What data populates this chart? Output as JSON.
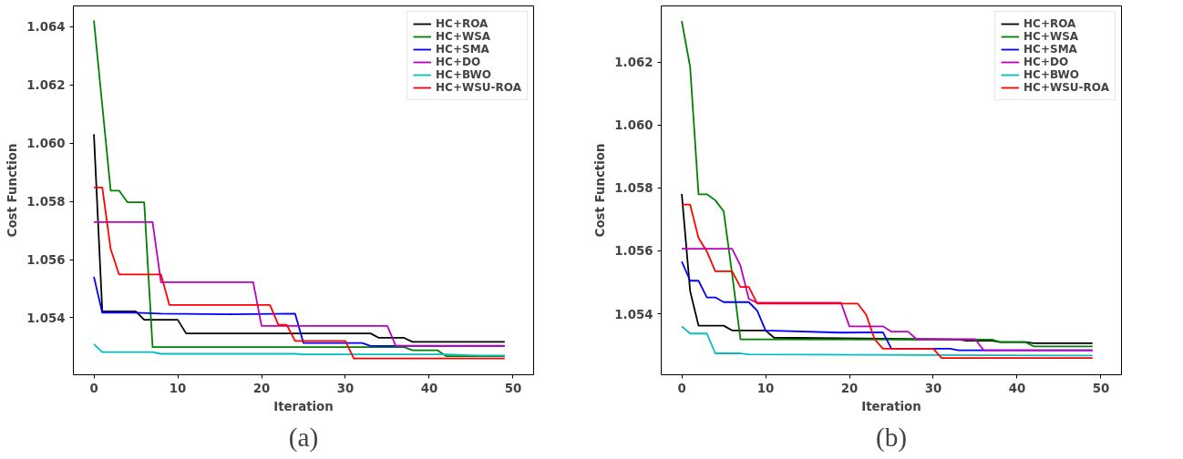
{
  "chart_data": [
    {
      "type": "line",
      "xlabel": "Iteration",
      "ylabel": "Cost Function",
      "annotations": [
        "(a)"
      ],
      "xlim": [
        -2.45,
        52.45
      ],
      "ylim": [
        1.05204,
        1.06472
      ],
      "xticks": [
        0,
        10,
        20,
        30,
        40,
        50
      ],
      "yticks": [
        {
          "value": 1.054,
          "label": "1.054"
        },
        {
          "value": 1.056,
          "label": "1.056"
        },
        {
          "value": 1.058,
          "label": "1.058"
        },
        {
          "value": 1.06,
          "label": "1.060"
        },
        {
          "value": 1.062,
          "label": "1.062"
        },
        {
          "value": 1.064,
          "label": "1.064"
        }
      ],
      "legend": "top right",
      "grid": false,
      "line_style": "solid",
      "marker": "none",
      "series": [
        {
          "name": "HC+ROA",
          "color": "#000000",
          "x": [
            0,
            1,
            5,
            6,
            10,
            11,
            33,
            34,
            37,
            38,
            49
          ],
          "values": [
            1.06031,
            1.05422,
            1.05422,
            1.05393,
            1.05393,
            1.05346,
            1.05346,
            1.05331,
            1.05331,
            1.05317,
            1.05317
          ]
        },
        {
          "name": "HC+WSA",
          "color": "#008000",
          "x": [
            0,
            2,
            3,
            4,
            6,
            7,
            37,
            38,
            41,
            42,
            49
          ],
          "values": [
            1.06422,
            1.05837,
            1.05837,
            1.05797,
            1.05797,
            1.05299,
            1.05299,
            1.05288,
            1.05288,
            1.05268,
            1.05268
          ]
        },
        {
          "name": "HC+SMA",
          "color": "#0000ff",
          "x": [
            0,
            1,
            5,
            8,
            16,
            24,
            25,
            32,
            33,
            49
          ],
          "values": [
            1.05541,
            1.05417,
            1.05417,
            1.05414,
            1.05412,
            1.05414,
            1.05313,
            1.05313,
            1.05303,
            1.05303
          ]
        },
        {
          "name": "HC+DO",
          "color": "#bf00bf",
          "x": [
            0,
            7,
            8,
            19,
            20,
            35,
            36,
            49
          ],
          "values": [
            1.05729,
            1.05729,
            1.05522,
            1.05522,
            1.05372,
            1.05372,
            1.05304,
            1.05304
          ]
        },
        {
          "name": "HC+BWO",
          "color": "#00bfbf",
          "x": [
            0,
            1,
            7,
            8,
            24,
            25,
            42,
            46,
            49
          ],
          "values": [
            1.05309,
            1.05282,
            1.05282,
            1.05276,
            1.05276,
            1.05274,
            1.05274,
            1.0527,
            1.0527
          ]
        },
        {
          "name": "HC+WSU-ROA",
          "color": "#ff0000",
          "x": [
            0,
            1,
            2,
            3,
            8,
            9,
            21,
            22,
            23,
            24,
            30,
            31,
            49
          ],
          "values": [
            1.05848,
            1.05848,
            1.05636,
            1.05549,
            1.05549,
            1.05444,
            1.05444,
            1.05376,
            1.05376,
            1.0532,
            1.0532,
            1.0526,
            1.0526
          ]
        }
      ]
    },
    {
      "type": "line",
      "xlabel": "Iteration",
      "ylabel": "Cost Function",
      "annotations": [
        "(b)"
      ],
      "xlim": [
        -2.45,
        52.45
      ],
      "ylim": [
        1.05206,
        1.06379
      ],
      "xticks": [
        0,
        10,
        20,
        30,
        40,
        50
      ],
      "yticks": [
        {
          "value": 1.054,
          "label": "1.054"
        },
        {
          "value": 1.056,
          "label": "1.056"
        },
        {
          "value": 1.058,
          "label": "1.058"
        },
        {
          "value": 1.06,
          "label": "1.060"
        },
        {
          "value": 1.062,
          "label": "1.062"
        }
      ],
      "legend": "top right",
      "grid": false,
      "line_style": "solid",
      "marker": "none",
      "series": [
        {
          "name": "HC+ROA",
          "color": "#000000",
          "x": [
            0,
            1,
            2,
            5,
            6,
            10,
            11,
            33,
            34,
            37,
            38,
            41,
            42,
            49
          ],
          "values": [
            1.05781,
            1.05472,
            1.05362,
            1.05362,
            1.05347,
            1.05347,
            1.05324,
            1.05318,
            1.05314,
            1.05314,
            1.0531,
            1.0531,
            1.05306,
            1.05306
          ]
        },
        {
          "name": "HC+WSA",
          "color": "#008000",
          "x": [
            0,
            1,
            2,
            3,
            4,
            5,
            6,
            7,
            37,
            38,
            41,
            42,
            49
          ],
          "values": [
            1.06331,
            1.06185,
            1.0578,
            1.0578,
            1.05761,
            1.05726,
            1.05528,
            1.05319,
            1.05318,
            1.0531,
            1.0531,
            1.05296,
            1.05296
          ]
        },
        {
          "name": "HC+SMA",
          "color": "#0000ff",
          "x": [
            0,
            1,
            2,
            3,
            4,
            5,
            8,
            9,
            10,
            19,
            24,
            25,
            32,
            33,
            49
          ],
          "values": [
            1.05566,
            1.05505,
            1.05505,
            1.05452,
            1.05452,
            1.05437,
            1.05437,
            1.0541,
            1.05347,
            1.0534,
            1.05341,
            1.05289,
            1.05289,
            1.05284,
            1.05284
          ]
        },
        {
          "name": "HC+DO",
          "color": "#bf00bf",
          "x": [
            0,
            6,
            7,
            8,
            9,
            19,
            20,
            24,
            25,
            27,
            28,
            35,
            36,
            49
          ],
          "values": [
            1.05607,
            1.05607,
            1.05553,
            1.05447,
            1.05435,
            1.05435,
            1.0536,
            1.0536,
            1.05343,
            1.05343,
            1.05319,
            1.05319,
            1.05284,
            1.05284
          ]
        },
        {
          "name": "HC+BWO",
          "color": "#00bfbf",
          "x": [
            0,
            1,
            3,
            4,
            7,
            8,
            46,
            49
          ],
          "values": [
            1.0536,
            1.05337,
            1.05337,
            1.05274,
            1.05274,
            1.05271,
            1.05267,
            1.05267
          ]
        },
        {
          "name": "HC+WSU-ROA",
          "color": "#ff0000",
          "x": [
            0,
            1,
            2,
            3,
            4,
            6,
            7,
            8,
            9,
            21,
            22,
            23,
            24,
            30,
            31,
            49
          ],
          "values": [
            1.05747,
            1.05747,
            1.05641,
            1.05598,
            1.05535,
            1.05535,
            1.05485,
            1.05485,
            1.05432,
            1.05432,
            1.05397,
            1.05319,
            1.05289,
            1.05289,
            1.05259,
            1.05259
          ]
        }
      ]
    }
  ]
}
